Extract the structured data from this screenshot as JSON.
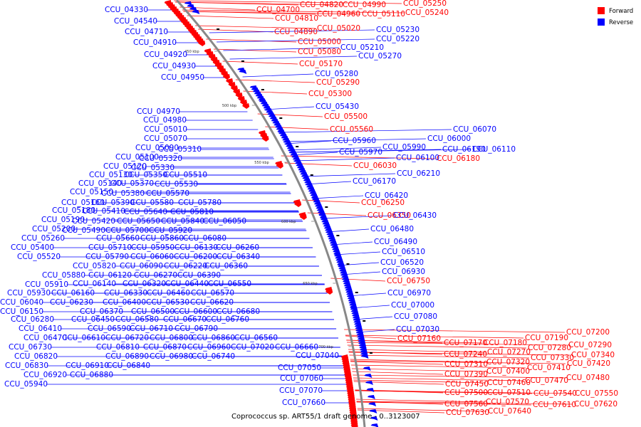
{
  "caption": "Coprococcus sp. ART55/1 draft genome - 0..3123007",
  "legend": [
    {
      "label": "Forward",
      "color": "#ff0000"
    },
    {
      "label": "Reverse",
      "color": "#0000ff"
    }
  ],
  "colors": {
    "forward": "#ff0000",
    "reverse": "#0000ff",
    "backbone": "#888888"
  },
  "ticks": [
    "450 kbp",
    "500 kbp",
    "550 kbp",
    "600 kbp",
    "650 kbp",
    "700 kbp"
  ],
  "forward_labels": [
    "CCU_04700",
    "CCU_04820",
    "CCU_04990",
    "CCU_04810",
    "CCU_04960",
    "CCU_05110",
    "CCU_05250",
    "CCU_05240",
    "CCU_04890",
    "CCU_05020",
    "CCU_05000",
    "CCU_05080",
    "CCU_05170",
    "CCU_05290",
    "CCU_05300",
    "CCU_05500",
    "CCU_05560",
    "CCU_06030",
    "CCU_06180",
    "CCU_06250",
    "CCU_06350",
    "CCU_06750",
    "CCU_07160",
    "CCU_07170",
    "CCU_07180",
    "CCU_07190",
    "CCU_07200",
    "CCU_07240",
    "CCU_07270",
    "CCU_07280",
    "CCU_07290",
    "CCU_07330",
    "CCU_07340",
    "CCU_07310",
    "CCU_07320",
    "CCU_07410",
    "CCU_07420",
    "CCU_07390",
    "CCU_07400",
    "CCU_07480",
    "CCU_07470",
    "CCU_07450",
    "CCU_07460",
    "CCU_07500",
    "CCU_07510",
    "CCU_07540",
    "CCU_07550",
    "CCU_07560",
    "CCU_07570",
    "CCU_07610",
    "CCU_07620",
    "CCU_07630",
    "CCU_07640"
  ],
  "reverse_labels": [
    "CCU_04330",
    "CCU_04540",
    "CCU_04710",
    "CCU_04910",
    "CCU_04920",
    "CCU_04930",
    "CCU_04950",
    "CCU_05230",
    "CCU_05220",
    "CCU_05210",
    "CCU_05270",
    "CCU_05280",
    "CCU_05430",
    "CCU_04970",
    "CCU_04980",
    "CCU_05010",
    "CCU_05070",
    "CCU_05090",
    "CCU_05310",
    "CCU_05100",
    "CCU_05320",
    "CCU_05120",
    "CCU_05330",
    "CCU_05130",
    "CCU_05350",
    "CCU_05510",
    "CCU_05140",
    "CCU_05370",
    "CCU_05530",
    "CCU_05150",
    "CCU_05380",
    "CCU_05570",
    "CCU_05160",
    "CCU_05390",
    "CCU_05580",
    "CCU_05780",
    "CCU_05180",
    "CCU_05410",
    "CCU_05640",
    "CCU_05810",
    "CCU_05190",
    "CCU_05420",
    "CCU_05650",
    "CCU_05840",
    "CCU_06050",
    "CCU_05200",
    "CCU_05490",
    "CCU_05700",
    "CCU_05920",
    "CCU_05260",
    "CCU_05660",
    "CCU_05860",
    "CCU_06080",
    "CCU_05400",
    "CCU_05710",
    "CCU_05950",
    "CCU_06130",
    "CCU_06260",
    "CCU_05520",
    "CCU_05790",
    "CCU_06060",
    "CCU_06200",
    "CCU_06340",
    "CCU_05820",
    "CCU_06090",
    "CCU_06220",
    "CCU_06360",
    "CCU_05880",
    "CCU_06120",
    "CCU_06270",
    "CCU_06390",
    "CCU_05910",
    "CCU_06140",
    "CCU_06320",
    "CCU_06440",
    "CCU_06550",
    "CCU_05930",
    "CCU_06160",
    "CCU_06330",
    "CCU_06460",
    "CCU_06570",
    "CCU_06040",
    "CCU_06230",
    "CCU_06400",
    "CCU_06530",
    "CCU_06620",
    "CCU_06150",
    "CCU_06370",
    "CCU_06500",
    "CCU_06600",
    "CCU_06680",
    "CCU_06280",
    "CCU_06450",
    "CCU_06580",
    "CCU_06670",
    "CCU_06760",
    "CCU_06410",
    "CCU_06590",
    "CCU_06710",
    "CCU_06790",
    "CCU_06470",
    "CCU_06610",
    "CCU_06720",
    "CCU_06800",
    "CCU_06860",
    "CCU_06560",
    "CCU_06730",
    "CCU_06810",
    "CCU_06870",
    "CCU_06960",
    "CCU_07020",
    "CCU_06660",
    "CCU_06820",
    "CCU_06890",
    "CCU_06980",
    "CCU_06740",
    "CCU_06830",
    "CCU_06910",
    "CCU_06840",
    "CCU_06920",
    "CCU_06880",
    "CCU_05940",
    "CCU_05960",
    "CCU_05970",
    "CCU_05990",
    "CCU_06000",
    "CCU_06070",
    "CCU_06100",
    "CCU_06190",
    "CCU_06110",
    "CCU_06170",
    "CCU_06210",
    "CCU_06420",
    "CCU_06430",
    "CCU_06480",
    "CCU_06490",
    "CCU_06510",
    "CCU_06520",
    "CCU_06930",
    "CCU_06970",
    "CCU_07000",
    "CCU_07080",
    "CCU_07030",
    "CCU_07040",
    "CCU_07050",
    "CCU_07060",
    "CCU_07070",
    "CCU_07660"
  ]
}
